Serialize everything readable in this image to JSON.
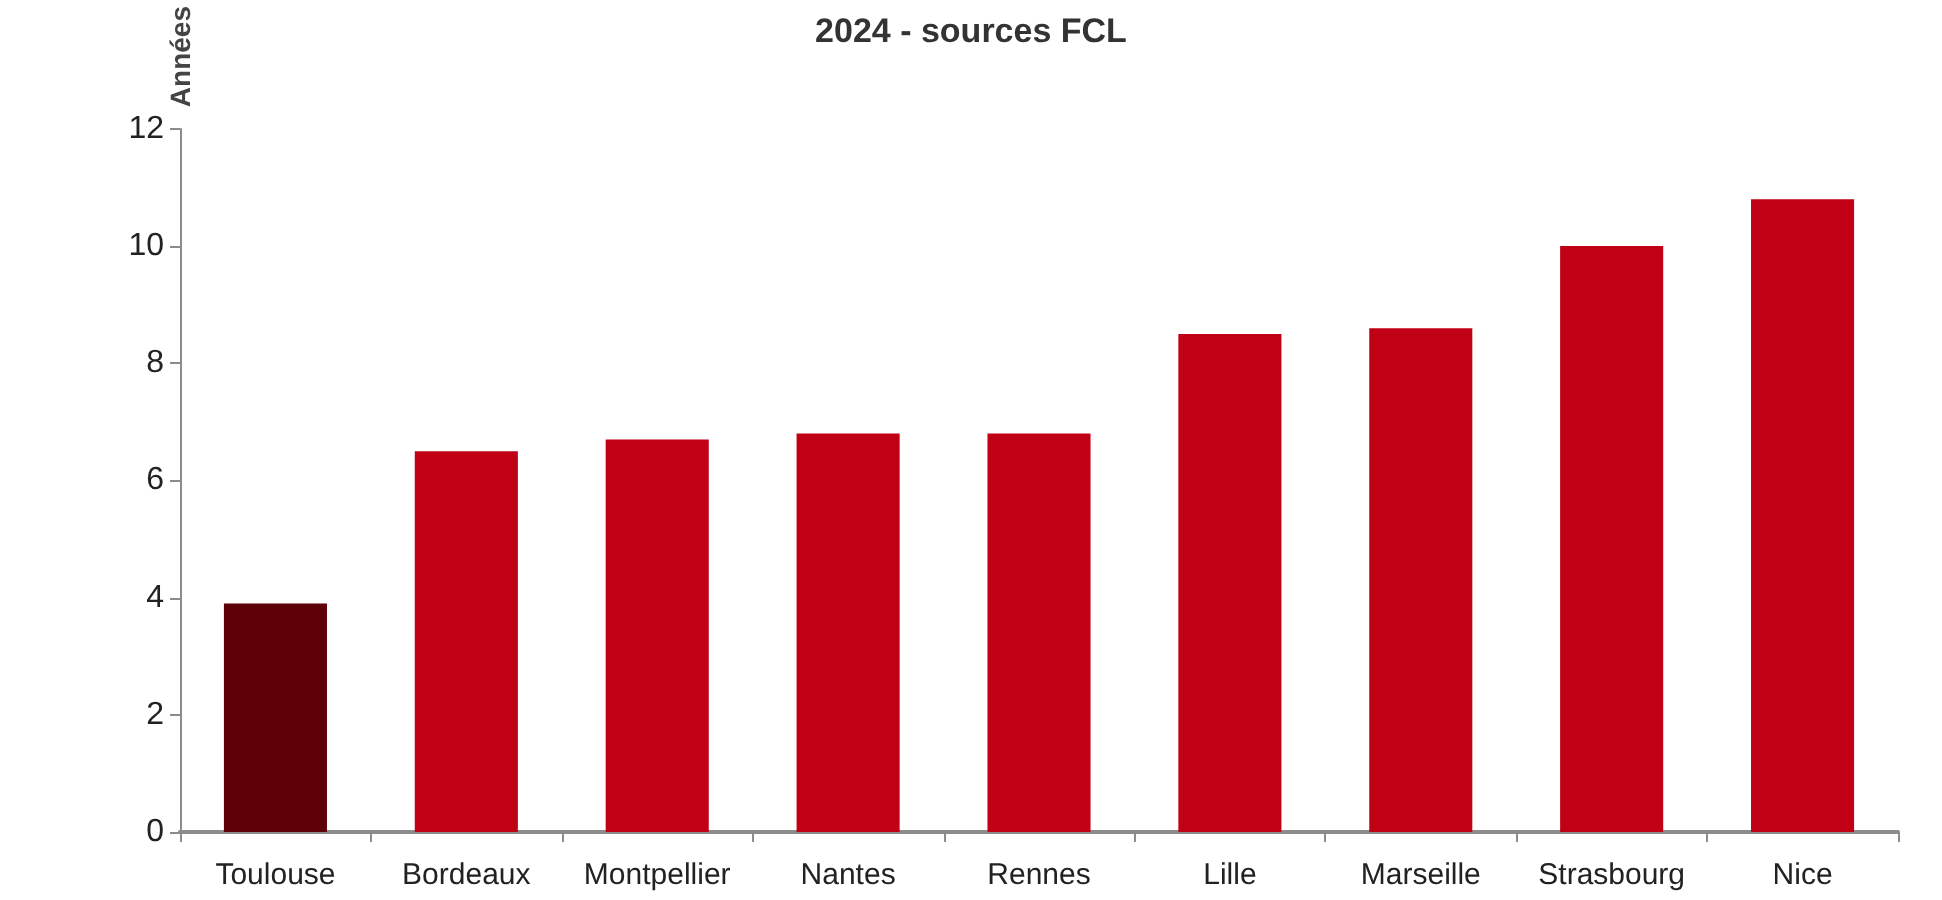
{
  "chart_data": {
    "type": "bar",
    "title": "2024 - sources FCL",
    "ylabel": "Années",
    "categories": [
      "Toulouse",
      "Bordeaux",
      "Montpellier",
      "Nantes",
      "Rennes",
      "Lille",
      "Marseille",
      "Strasbourg",
      "Nice"
    ],
    "values": [
      3.9,
      6.5,
      6.7,
      6.8,
      6.8,
      8.5,
      8.6,
      10,
      10.8
    ],
    "colors": [
      "#5e0008",
      "#c00015",
      "#c00015",
      "#c00015",
      "#c00015",
      "#c00015",
      "#c00015",
      "#c00015",
      "#c00015"
    ],
    "ylim": [
      0,
      12
    ],
    "yticks": [
      0,
      2,
      4,
      6,
      8,
      10,
      12
    ],
    "grid": false
  }
}
